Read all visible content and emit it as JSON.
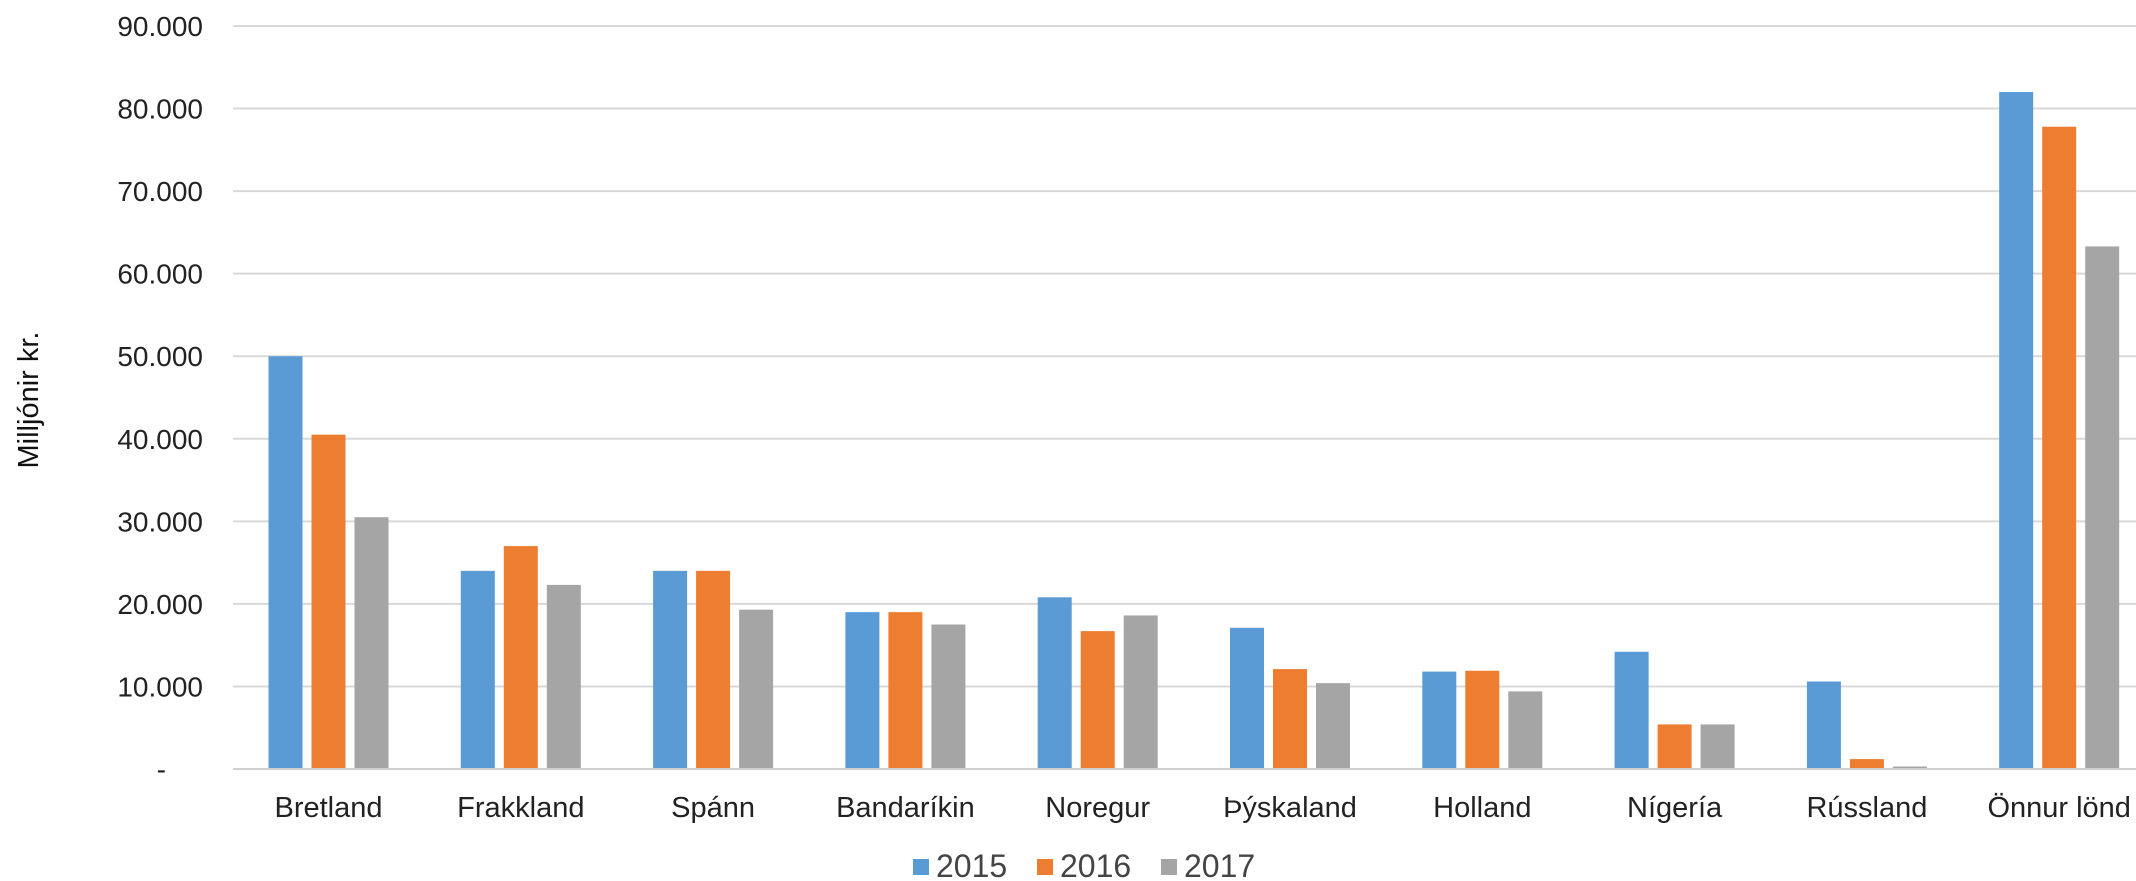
{
  "chart_data": {
    "type": "bar",
    "title": "",
    "xlabel": "",
    "ylabel": "Milljónir kr.",
    "ylim": [
      0,
      90000
    ],
    "y_ticks": [
      "-",
      "10.000",
      "20.000",
      "30.000",
      "40.000",
      "50.000",
      "60.000",
      "70.000",
      "80.000",
      "90.000"
    ],
    "grid": true,
    "legend_position": "bottom",
    "categories": [
      "Bretland",
      "Frakkland",
      "Spánn",
      "Bandaríkin",
      "Noregur",
      "Þýskaland",
      "Holland",
      "Nígería",
      "Rússland",
      "Önnur lönd"
    ],
    "series": [
      {
        "name": "2015",
        "color": "#5B9BD5",
        "values": [
          50000,
          24000,
          24000,
          19000,
          20800,
          17100,
          11800,
          14200,
          10600,
          82000
        ]
      },
      {
        "name": "2016",
        "color": "#ED7D31",
        "values": [
          40500,
          27000,
          24000,
          19000,
          16700,
          12100,
          11900,
          5400,
          1200,
          77800
        ]
      },
      {
        "name": "2017",
        "color": "#A5A5A5",
        "values": [
          30500,
          22300,
          19300,
          17500,
          18600,
          10400,
          9400,
          5400,
          300,
          63300
        ]
      }
    ]
  }
}
